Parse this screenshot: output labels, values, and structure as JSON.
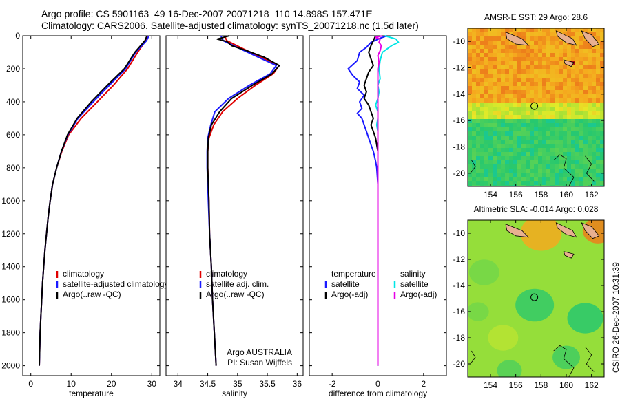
{
  "header": {
    "line1": "Argo profile: CS 5901163_49 16-Dec-2007 20071218_110 14.898S 157.471E",
    "line2": "Climatology: CARS2006. Satellite-adjusted climatology: synTS_20071218.nc (1.5d later)"
  },
  "side_label": "CSIRO 26-Dec-2007 10:31:39",
  "colors": {
    "climatology": "#e00000",
    "satellite": "#1a1aff",
    "argo": "#000000",
    "cyan": "#00e6e6",
    "magenta": "#e600e6",
    "axis": "#000000"
  },
  "chart_data": [
    {
      "type": "line",
      "id": "temperature",
      "xlabel": "temperature",
      "xlim": [
        -2,
        32
      ],
      "xticks": [
        0,
        10,
        20,
        30
      ],
      "ylim": [
        2060,
        0
      ],
      "yticks": [
        0,
        200,
        400,
        600,
        800,
        1000,
        1200,
        1400,
        1600,
        1800,
        2000
      ],
      "legend": [
        "climatology",
        "satellite-adjusted climatology",
        "Argo(..raw -QC)"
      ],
      "series": [
        {
          "name": "climatology",
          "color": "climatology",
          "points": [
            [
              28.9,
              0
            ],
            [
              28.5,
              30
            ],
            [
              26.5,
              100
            ],
            [
              24,
              200
            ],
            [
              20.5,
              300
            ],
            [
              16.5,
              400
            ],
            [
              12.5,
              500
            ],
            [
              9.4,
              600
            ],
            [
              7.7,
              700
            ],
            [
              6.4,
              800
            ],
            [
              5.4,
              900
            ],
            [
              4.8,
              1000
            ],
            [
              4.3,
              1100
            ],
            [
              3.9,
              1200
            ],
            [
              3.5,
              1300
            ],
            [
              3.2,
              1400
            ],
            [
              2.9,
              1500
            ],
            [
              2.7,
              1600
            ],
            [
              2.5,
              1700
            ],
            [
              2.3,
              1800
            ],
            [
              2.2,
              1900
            ],
            [
              2.1,
              2000
            ]
          ]
        },
        {
          "name": "satellite",
          "color": "satellite",
          "points": [
            [
              29.3,
              0
            ],
            [
              28.7,
              30
            ],
            [
              26,
              100
            ],
            [
              23.5,
              200
            ],
            [
              19.5,
              300
            ],
            [
              15.5,
              400
            ],
            [
              11.7,
              500
            ],
            [
              9.2,
              600
            ],
            [
              7.6,
              700
            ],
            [
              6.4,
              800
            ],
            [
              5.4,
              900
            ],
            [
              4.8,
              1000
            ],
            [
              4.3,
              1100
            ],
            [
              3.9,
              1200
            ],
            [
              3.5,
              1300
            ],
            [
              3.2,
              1400
            ],
            [
              2.9,
              1500
            ],
            [
              2.7,
              1600
            ],
            [
              2.5,
              1700
            ],
            [
              2.3,
              1800
            ],
            [
              2.2,
              1900
            ],
            [
              2.1,
              2000
            ]
          ]
        },
        {
          "name": "argo",
          "color": "argo",
          "points": [
            [
              28.8,
              0
            ],
            [
              28.3,
              30
            ],
            [
              25.8,
              100
            ],
            [
              23.2,
              200
            ],
            [
              19,
              300
            ],
            [
              15,
              400
            ],
            [
              11.5,
              500
            ],
            [
              9.1,
              600
            ],
            [
              7.6,
              700
            ],
            [
              6.4,
              800
            ],
            [
              5.4,
              900
            ],
            [
              4.8,
              1000
            ],
            [
              4.3,
              1100
            ],
            [
              3.9,
              1200
            ],
            [
              3.5,
              1300
            ],
            [
              3.2,
              1400
            ],
            [
              2.9,
              1500
            ],
            [
              2.7,
              1600
            ],
            [
              2.5,
              1700
            ],
            [
              2.3,
              1800
            ],
            [
              2.2,
              1900
            ],
            [
              2.1,
              2000
            ]
          ]
        }
      ]
    },
    {
      "type": "line",
      "id": "salinity",
      "xlabel": "salinity",
      "xlim": [
        33.8,
        36.1
      ],
      "xticks": [
        34,
        34.5,
        35,
        35.5,
        36
      ],
      "xticklabels": [
        "34",
        "34.5",
        "35",
        "35.5",
        "36"
      ],
      "ylim": [
        2060,
        0
      ],
      "legend": [
        "climatology",
        "satellite adj. clim.",
        "Argo(..raw -QC)"
      ],
      "credits": [
        "Argo AUSTRALIA",
        "PI: Susan Wijffels"
      ],
      "series": [
        {
          "name": "climatology",
          "color": "climatology",
          "points": [
            [
              34.78,
              0
            ],
            [
              34.82,
              30
            ],
            [
              35.1,
              80
            ],
            [
              35.4,
              130
            ],
            [
              35.7,
              180
            ],
            [
              35.6,
              230
            ],
            [
              35.3,
              300
            ],
            [
              35,
              380
            ],
            [
              34.75,
              460
            ],
            [
              34.6,
              540
            ],
            [
              34.52,
              620
            ],
            [
              34.5,
              700
            ],
            [
              34.5,
              800
            ],
            [
              34.51,
              900
            ],
            [
              34.52,
              1000
            ],
            [
              34.53,
              1200
            ],
            [
              34.56,
              1400
            ],
            [
              34.58,
              1600
            ],
            [
              34.61,
              1800
            ],
            [
              34.64,
              2000
            ]
          ]
        },
        {
          "name": "satellite",
          "color": "satellite",
          "points": [
            [
              34.72,
              0
            ],
            [
              34.76,
              30
            ],
            [
              35.05,
              80
            ],
            [
              35.35,
              130
            ],
            [
              35.65,
              180
            ],
            [
              35.55,
              230
            ],
            [
              35.2,
              300
            ],
            [
              34.85,
              380
            ],
            [
              34.62,
              460
            ],
            [
              34.55,
              540
            ],
            [
              34.5,
              620
            ],
            [
              34.49,
              700
            ],
            [
              34.49,
              800
            ],
            [
              34.5,
              900
            ],
            [
              34.51,
              1000
            ],
            [
              34.53,
              1200
            ],
            [
              34.56,
              1400
            ],
            [
              34.58,
              1600
            ],
            [
              34.61,
              1800
            ],
            [
              34.64,
              2000
            ]
          ]
        },
        {
          "name": "argo",
          "color": "argo",
          "points": [
            [
              34.86,
              0
            ],
            [
              34.66,
              20
            ],
            [
              34.82,
              35
            ],
            [
              34.9,
              60
            ],
            [
              35.15,
              90
            ],
            [
              35.45,
              130
            ],
            [
              35.7,
              180
            ],
            [
              35.58,
              230
            ],
            [
              35.25,
              300
            ],
            [
              34.9,
              380
            ],
            [
              34.7,
              460
            ],
            [
              34.56,
              540
            ],
            [
              34.51,
              620
            ],
            [
              34.5,
              700
            ],
            [
              34.5,
              800
            ],
            [
              34.51,
              900
            ],
            [
              34.52,
              1000
            ],
            [
              34.53,
              1200
            ],
            [
              34.56,
              1400
            ],
            [
              34.58,
              1600
            ],
            [
              34.61,
              1800
            ],
            [
              34.64,
              2000
            ]
          ]
        }
      ]
    },
    {
      "type": "line",
      "id": "difference",
      "xlabel": "difference from climatology",
      "xlim": [
        -3,
        3
      ],
      "xticks": [
        -2,
        0,
        2
      ],
      "ylim": [
        2060,
        0
      ],
      "legend_groups": [
        {
          "title": "temperature",
          "items": [
            "satellite",
            "Argo(-adj)"
          ]
        },
        {
          "title": "salinity",
          "items": [
            "satellite",
            "Argo(-adj)"
          ]
        }
      ],
      "series": [
        {
          "name": "temperature satellite",
          "color": "satellite",
          "points": [
            [
              0.4,
              0
            ],
            [
              0.1,
              15
            ],
            [
              -0.3,
              40
            ],
            [
              -0.5,
              70
            ],
            [
              -0.8,
              100
            ],
            [
              -0.9,
              150
            ],
            [
              -1.3,
              200
            ],
            [
              -1.1,
              240
            ],
            [
              -0.8,
              280
            ],
            [
              -0.9,
              320
            ],
            [
              -0.6,
              360
            ],
            [
              -0.8,
              400
            ],
            [
              -0.7,
              440
            ],
            [
              -0.9,
              470
            ],
            [
              -0.7,
              500
            ],
            [
              -0.6,
              540
            ],
            [
              -0.5,
              580
            ],
            [
              -0.4,
              620
            ],
            [
              -0.3,
              660
            ],
            [
              -0.2,
              700
            ],
            [
              -0.1,
              760
            ],
            [
              -0.05,
              800
            ],
            [
              0,
              900
            ],
            [
              0,
              1000
            ],
            [
              0,
              2000
            ]
          ]
        },
        {
          "name": "temperature Argo(-adj)",
          "color": "argo",
          "points": [
            [
              -0.1,
              0
            ],
            [
              -0.2,
              30
            ],
            [
              -0.3,
              60
            ],
            [
              -0.4,
              100
            ],
            [
              -0.3,
              140
            ],
            [
              -0.2,
              180
            ],
            [
              -0.4,
              220
            ],
            [
              -0.5,
              260
            ],
            [
              -0.6,
              300
            ],
            [
              -0.5,
              340
            ],
            [
              -0.6,
              380
            ],
            [
              -0.4,
              420
            ],
            [
              -0.3,
              460
            ],
            [
              -0.2,
              500
            ],
            [
              -0.3,
              540
            ],
            [
              -0.2,
              580
            ],
            [
              -0.1,
              620
            ],
            [
              -0.05,
              660
            ],
            [
              0,
              700
            ],
            [
              0,
              2000
            ]
          ]
        },
        {
          "name": "salinity satellite",
          "color": "cyan",
          "points": [
            [
              0.3,
              0
            ],
            [
              0.8,
              20
            ],
            [
              0.9,
              40
            ],
            [
              0.6,
              60
            ],
            [
              0.2,
              100
            ],
            [
              0.1,
              150
            ],
            [
              0.05,
              200
            ],
            [
              0.1,
              260
            ],
            [
              0,
              300
            ],
            [
              0.05,
              340
            ],
            [
              0,
              380
            ],
            [
              -0.1,
              420
            ],
            [
              0,
              460
            ],
            [
              0,
              500
            ],
            [
              -0.05,
              540
            ],
            [
              0,
              580
            ],
            [
              0,
              700
            ],
            [
              0,
              1000
            ],
            [
              0,
              2000
            ]
          ]
        },
        {
          "name": "salinity Argo(-adj)",
          "color": "magenta",
          "points": [
            [
              0.2,
              0
            ],
            [
              -0.1,
              10
            ],
            [
              0.1,
              20
            ],
            [
              0.05,
              40
            ],
            [
              0.15,
              60
            ],
            [
              0.1,
              90
            ],
            [
              0,
              120
            ],
            [
              0.05,
              160
            ],
            [
              0,
              200
            ],
            [
              0,
              2000
            ]
          ]
        }
      ]
    }
  ],
  "maps": [
    {
      "title": "AMSR-E SST: 29 Argo: 28.6",
      "type": "sst",
      "xticks": [
        "154",
        "156",
        "158",
        "160",
        "162"
      ],
      "yticks": [
        "-10",
        "-12",
        "-14",
        "-16",
        "-18",
        "-20"
      ]
    },
    {
      "title": "Altimetric SLA: -0.014 Argo: 0.028",
      "type": "sla",
      "xticks": [
        "154",
        "156",
        "158",
        "160",
        "162"
      ],
      "yticks": [
        "-10",
        "-12",
        "-14",
        "-16",
        "-18",
        "-20"
      ]
    }
  ]
}
